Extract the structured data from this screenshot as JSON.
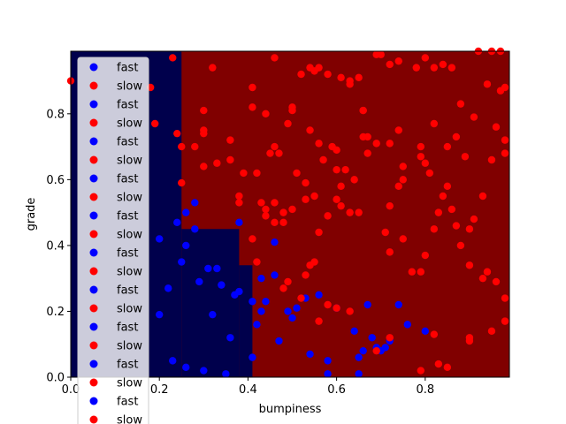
{
  "chart_data": {
    "type": "scatter",
    "title": "",
    "xlabel": "bumpiness",
    "ylabel": "grade",
    "xlim": [
      0,
      0.99
    ],
    "ylim": [
      0,
      0.99
    ],
    "x_ticks": [
      0.0,
      0.2,
      0.4,
      0.6,
      0.8
    ],
    "x_tick_labels": [
      "0.0",
      "0.2",
      "0.4",
      "0.6",
      "0.8"
    ],
    "y_ticks": [
      0.0,
      0.2,
      0.4,
      0.6,
      0.8
    ],
    "y_tick_labels": [
      "0.0",
      "0.2",
      "0.4",
      "0.6",
      "0.8"
    ],
    "grid": false,
    "legend_position": "top-left",
    "colors": {
      "region_fast": "#00004c",
      "region_slow": "#800000",
      "fast": "#0000ff",
      "slow": "#ff0000"
    },
    "decision_regions": [
      {
        "label": "fast",
        "x": [
          0.0,
          0.25
        ],
        "y": [
          0.0,
          0.99
        ]
      },
      {
        "label": "fast",
        "x": [
          0.25,
          0.38
        ],
        "y": [
          0.0,
          0.45
        ]
      },
      {
        "label": "fast",
        "x": [
          0.38,
          0.41
        ],
        "y": [
          0.0,
          0.34
        ]
      }
    ],
    "legend_entries": [
      "fast",
      "slow",
      "fast",
      "slow",
      "fast",
      "slow",
      "fast",
      "slow",
      "fast",
      "slow",
      "fast",
      "slow",
      "fast",
      "slow",
      "fast",
      "slow",
      "fast",
      "slow",
      "fast",
      "slow"
    ],
    "series": [
      {
        "name": "fast",
        "color": "#0000ff",
        "points": [
          [
            0.23,
            0.05
          ],
          [
            0.26,
            0.03
          ],
          [
            0.3,
            0.02
          ],
          [
            0.35,
            0.01
          ],
          [
            0.36,
            0.12
          ],
          [
            0.41,
            0.06
          ],
          [
            0.42,
            0.16
          ],
          [
            0.43,
            0.2
          ],
          [
            0.41,
            0.23
          ],
          [
            0.44,
            0.23
          ],
          [
            0.43,
            0.3
          ],
          [
            0.46,
            0.31
          ],
          [
            0.47,
            0.11
          ],
          [
            0.49,
            0.2
          ],
          [
            0.5,
            0.18
          ],
          [
            0.51,
            0.21
          ],
          [
            0.53,
            0.24
          ],
          [
            0.56,
            0.25
          ],
          [
            0.58,
            0.05
          ],
          [
            0.54,
            0.07
          ],
          [
            0.6,
            0.21
          ],
          [
            0.64,
            0.14
          ],
          [
            0.65,
            0.06
          ],
          [
            0.66,
            0.08
          ],
          [
            0.67,
            0.22
          ],
          [
            0.68,
            0.12
          ],
          [
            0.69,
            0.09
          ],
          [
            0.7,
            0.08
          ],
          [
            0.71,
            0.09
          ],
          [
            0.72,
            0.11
          ],
          [
            0.74,
            0.22
          ],
          [
            0.76,
            0.16
          ],
          [
            0.8,
            0.14
          ],
          [
            0.46,
            0.41
          ],
          [
            0.38,
            0.47
          ],
          [
            0.38,
            0.26
          ],
          [
            0.37,
            0.25
          ],
          [
            0.34,
            0.28
          ],
          [
            0.31,
            0.33
          ],
          [
            0.29,
            0.29
          ],
          [
            0.32,
            0.19
          ],
          [
            0.33,
            0.33
          ],
          [
            0.25,
            0.35
          ],
          [
            0.26,
            0.4
          ],
          [
            0.22,
            0.27
          ],
          [
            0.2,
            0.19
          ],
          [
            0.2,
            0.42
          ],
          [
            0.26,
            0.5
          ],
          [
            0.28,
            0.45
          ],
          [
            0.28,
            0.53
          ],
          [
            0.24,
            0.47
          ],
          [
            0.58,
            0.01
          ],
          [
            0.65,
            0.01
          ]
        ]
      },
      {
        "name": "slow",
        "color": "#ff0000",
        "points": [
          [
            0.0,
            0.9
          ],
          [
            0.18,
            0.88
          ],
          [
            0.19,
            0.77
          ],
          [
            0.23,
            0.97
          ],
          [
            0.25,
            0.7
          ],
          [
            0.24,
            0.74
          ],
          [
            0.25,
            0.59
          ],
          [
            0.28,
            0.7
          ],
          [
            0.3,
            0.75
          ],
          [
            0.3,
            0.74
          ],
          [
            0.3,
            0.81
          ],
          [
            0.3,
            0.64
          ],
          [
            0.32,
            0.94
          ],
          [
            0.33,
            0.65
          ],
          [
            0.36,
            0.72
          ],
          [
            0.36,
            0.66
          ],
          [
            0.38,
            0.55
          ],
          [
            0.38,
            0.53
          ],
          [
            0.39,
            0.62
          ],
          [
            0.41,
            0.82
          ],
          [
            0.41,
            0.88
          ],
          [
            0.42,
            0.62
          ],
          [
            0.41,
            0.42
          ],
          [
            0.42,
            0.35
          ],
          [
            0.44,
            0.8
          ],
          [
            0.45,
            0.68
          ],
          [
            0.46,
            0.7
          ],
          [
            0.46,
            0.97
          ],
          [
            0.47,
            0.68
          ],
          [
            0.49,
            0.77
          ],
          [
            0.5,
            0.82
          ],
          [
            0.5,
            0.81
          ],
          [
            0.52,
            0.92
          ],
          [
            0.54,
            0.94
          ],
          [
            0.55,
            0.93
          ],
          [
            0.56,
            0.94
          ],
          [
            0.58,
            0.92
          ],
          [
            0.61,
            0.91
          ],
          [
            0.63,
            0.9
          ],
          [
            0.65,
            0.91
          ],
          [
            0.66,
            0.81
          ],
          [
            0.67,
            0.73
          ],
          [
            0.69,
            0.98
          ],
          [
            0.7,
            0.98
          ],
          [
            0.72,
            0.95
          ],
          [
            0.74,
            0.96
          ],
          [
            0.78,
            0.94
          ],
          [
            0.8,
            0.97
          ],
          [
            0.82,
            0.94
          ],
          [
            0.84,
            0.95
          ],
          [
            0.86,
            0.94
          ],
          [
            0.88,
            0.83
          ],
          [
            0.92,
            0.99
          ],
          [
            0.95,
            0.99
          ],
          [
            0.97,
            0.99
          ],
          [
            0.98,
            0.88
          ],
          [
            0.97,
            0.87
          ],
          [
            0.94,
            0.89
          ],
          [
            0.96,
            0.76
          ],
          [
            0.98,
            0.72
          ],
          [
            0.98,
            0.68
          ],
          [
            0.95,
            0.66
          ],
          [
            0.91,
            0.79
          ],
          [
            0.89,
            0.67
          ],
          [
            0.87,
            0.73
          ],
          [
            0.85,
            0.7
          ],
          [
            0.82,
            0.77
          ],
          [
            0.79,
            0.67
          ],
          [
            0.8,
            0.65
          ],
          [
            0.75,
            0.64
          ],
          [
            0.75,
            0.6
          ],
          [
            0.74,
            0.58
          ],
          [
            0.72,
            0.52
          ],
          [
            0.71,
            0.44
          ],
          [
            0.72,
            0.38
          ],
          [
            0.75,
            0.42
          ],
          [
            0.77,
            0.32
          ],
          [
            0.79,
            0.32
          ],
          [
            0.8,
            0.37
          ],
          [
            0.82,
            0.45
          ],
          [
            0.83,
            0.5
          ],
          [
            0.84,
            0.55
          ],
          [
            0.85,
            0.58
          ],
          [
            0.86,
            0.51
          ],
          [
            0.87,
            0.46
          ],
          [
            0.88,
            0.4
          ],
          [
            0.9,
            0.45
          ],
          [
            0.9,
            0.34
          ],
          [
            0.91,
            0.48
          ],
          [
            0.93,
            0.55
          ],
          [
            0.93,
            0.3
          ],
          [
            0.94,
            0.32
          ],
          [
            0.96,
            0.29
          ],
          [
            0.98,
            0.24
          ],
          [
            0.98,
            0.17
          ],
          [
            0.95,
            0.14
          ],
          [
            0.9,
            0.11
          ],
          [
            0.9,
            0.12
          ],
          [
            0.85,
            0.03
          ],
          [
            0.83,
            0.04
          ],
          [
            0.82,
            0.13
          ],
          [
            0.79,
            0.02
          ],
          [
            0.72,
            0.12
          ],
          [
            0.69,
            0.08
          ],
          [
            0.63,
            0.2
          ],
          [
            0.6,
            0.21
          ],
          [
            0.58,
            0.22
          ],
          [
            0.56,
            0.17
          ],
          [
            0.53,
            0.31
          ],
          [
            0.52,
            0.24
          ],
          [
            0.49,
            0.29
          ],
          [
            0.48,
            0.27
          ],
          [
            0.46,
            0.47
          ],
          [
            0.44,
            0.51
          ],
          [
            0.44,
            0.49
          ],
          [
            0.48,
            0.5
          ],
          [
            0.5,
            0.51
          ],
          [
            0.53,
            0.54
          ],
          [
            0.55,
            0.55
          ],
          [
            0.56,
            0.44
          ],
          [
            0.55,
            0.35
          ],
          [
            0.54,
            0.34
          ],
          [
            0.58,
            0.49
          ],
          [
            0.6,
            0.54
          ],
          [
            0.61,
            0.58
          ],
          [
            0.61,
            0.52
          ],
          [
            0.63,
            0.5
          ],
          [
            0.65,
            0.5
          ],
          [
            0.64,
            0.6
          ],
          [
            0.62,
            0.63
          ],
          [
            0.6,
            0.63
          ],
          [
            0.59,
            0.7
          ],
          [
            0.57,
            0.66
          ],
          [
            0.56,
            0.71
          ],
          [
            0.54,
            0.75
          ],
          [
            0.53,
            0.59
          ],
          [
            0.51,
            0.62
          ],
          [
            0.48,
            0.47
          ],
          [
            0.46,
            0.53
          ],
          [
            0.43,
            0.53
          ],
          [
            0.66,
            0.73
          ],
          [
            0.67,
            0.68
          ],
          [
            0.69,
            0.71
          ],
          [
            0.72,
            0.71
          ],
          [
            0.74,
            0.75
          ],
          [
            0.79,
            0.7
          ],
          [
            0.81,
            0.62
          ],
          [
            0.66,
            0.81
          ],
          [
            0.63,
            0.89
          ],
          [
            0.6,
            0.69
          ]
        ]
      }
    ]
  }
}
